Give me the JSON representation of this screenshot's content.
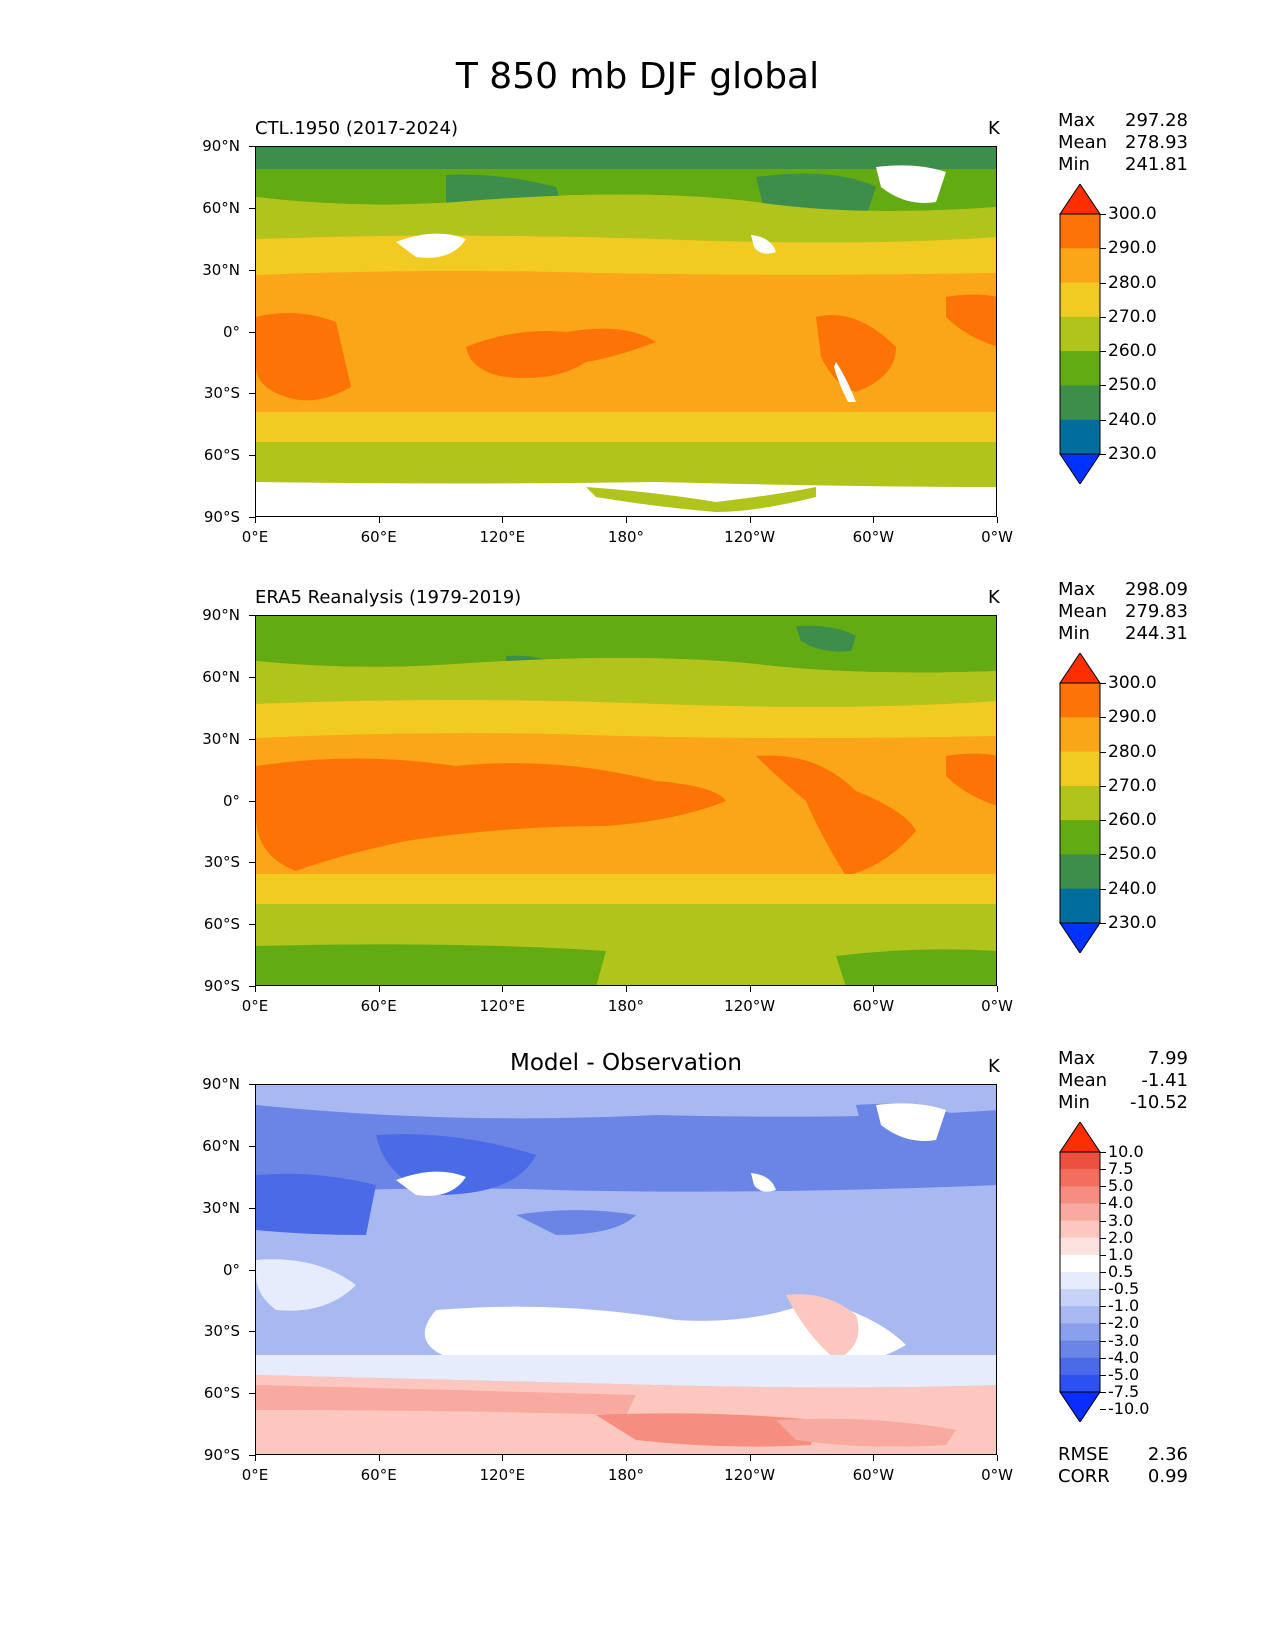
{
  "title": "T 850 mb DJF global",
  "panels": [
    {
      "title": "CTL.1950 (2017-2024)",
      "units": "K",
      "stats": {
        "max_label": "Max",
        "max": "297.28",
        "mean_label": "Mean",
        "mean": "278.93",
        "min_label": "Min",
        "min": "241.81"
      },
      "colorbar": [
        "300.0",
        "290.0",
        "280.0",
        "270.0",
        "260.0",
        "250.0",
        "240.0",
        "230.0"
      ]
    },
    {
      "title": "ERA5 Reanalysis (1979-2019)",
      "units": "K",
      "stats": {
        "max_label": "Max",
        "max": "298.09",
        "mean_label": "Mean",
        "mean": "279.83",
        "min_label": "Min",
        "min": "244.31"
      },
      "colorbar": [
        "300.0",
        "290.0",
        "280.0",
        "270.0",
        "260.0",
        "250.0",
        "240.0",
        "230.0"
      ]
    },
    {
      "title": "Model - Observation",
      "units": "K",
      "stats": {
        "max_label": "Max",
        "max": "7.99",
        "mean_label": "Mean",
        "mean": "-1.41",
        "min_label": "Min",
        "min": "-10.52"
      },
      "colorbar": [
        "10.0",
        "7.5",
        "5.0",
        "4.0",
        "3.0",
        "2.0",
        "1.0",
        "0.5",
        "-0.5",
        "-1.0",
        "-2.0",
        "-3.0",
        "-4.0",
        "-5.0",
        "-7.5",
        "-10.0"
      ],
      "rmse_label": "RMSE",
      "rmse": "2.36",
      "corr_label": "CORR",
      "corr": "0.99"
    }
  ],
  "axes": {
    "lat_ticks": [
      "90°N",
      "60°N",
      "30°N",
      "0°",
      "30°S",
      "60°S",
      "90°S"
    ],
    "lon_ticks": [
      "0°E",
      "60°E",
      "120°E",
      "180°",
      "120°W",
      "60°W",
      "0°W"
    ]
  },
  "colors": {
    "t_scale": [
      "#0033ff",
      "#006e9c",
      "#3c8e4a",
      "#62ab13",
      "#b0c41c",
      "#f2cb22",
      "#fba518",
      "#fd7406",
      "#ff2e00"
    ],
    "d_scale": [
      "#0b2cff",
      "#2d50f0",
      "#4a6ae8",
      "#6b85e6",
      "#8aa0ec",
      "#a8b9f2",
      "#c6d2f8",
      "#e6ecfb",
      "#ffffff",
      "#fde3df",
      "#fbc7bf",
      "#f8aaa0",
      "#f58d80",
      "#f26f60",
      "#ee5040",
      "#ff2e00"
    ]
  }
}
